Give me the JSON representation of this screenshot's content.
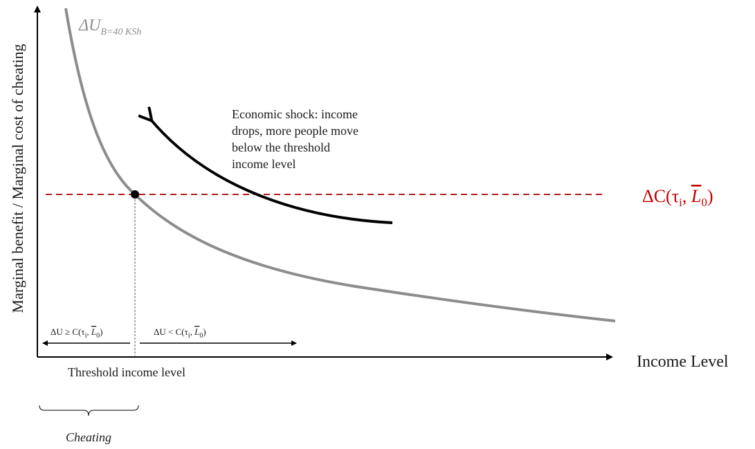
{
  "labels": {
    "y_axis": "Marginal benefit / Marginal cost of cheating",
    "x_axis": "Income Level",
    "benefit_curve_base": "ΔU",
    "benefit_curve_sub": "B=40 KSh",
    "cost_line_prefix": "ΔC(τ",
    "cost_line_sub_i": "i",
    "cost_line_sep": ", ",
    "cost_line_L": "L",
    "cost_line_sub_0": "0",
    "cost_line_suffix": ")",
    "shock_line1": "Economic shock: income",
    "shock_line2": "drops, more people move",
    "shock_line3": "below the threshold",
    "shock_line4": "income level",
    "left_region_base": "ΔU ≥ C(τ",
    "left_region_sub_i": "i",
    "left_region_sep": ", ",
    "left_region_L": "L",
    "left_region_sub_0": "0",
    "left_region_suffix": ")",
    "right_region_base": "ΔU < C(τ",
    "right_region_sub_i": "i",
    "right_region_sep": ", ",
    "right_region_L": "L",
    "right_region_sub_0": "0",
    "right_region_suffix": ")",
    "threshold": "Threshold income level",
    "cheating": "Cheating"
  },
  "colors": {
    "benefit_curve": "#8c8c8c",
    "cost_line": "#b01c1c",
    "cost_label": "#c00000",
    "axes": "#000000",
    "text": "#1a1a1a"
  }
}
